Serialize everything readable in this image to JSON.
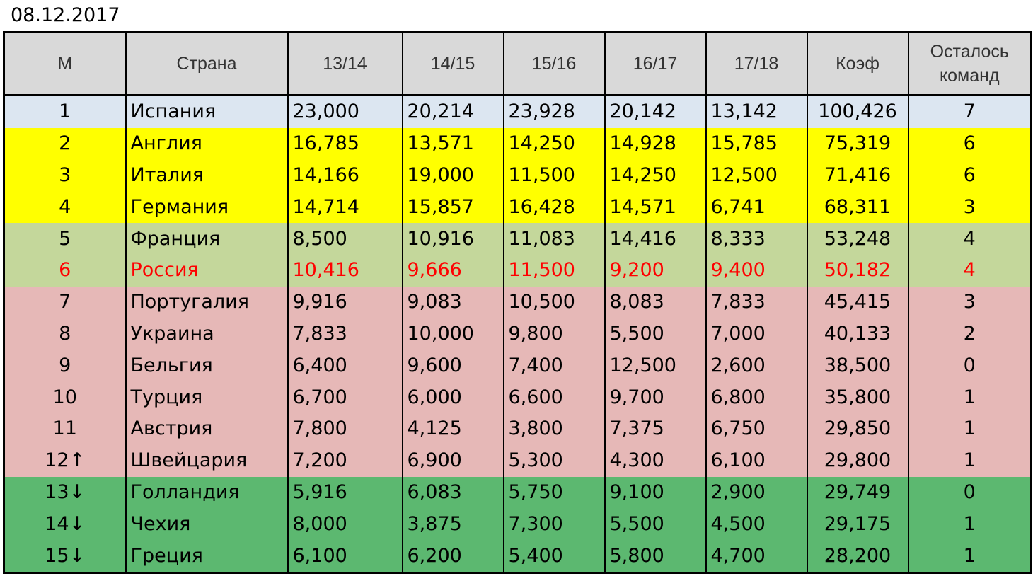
{
  "date": "08.12.2017",
  "columns": [
    "М",
    "Страна",
    "13/14",
    "14/15",
    "15/16",
    "16/17",
    "17/18",
    "Коэф",
    "Осталось команд"
  ],
  "rows": [
    {
      "rank": "1",
      "country": "Испания",
      "s1": "23,000",
      "s2": "20,214",
      "s3": "23,928",
      "s4": "20,142",
      "s5": "13,142",
      "coef": "100,426",
      "teams": "7",
      "group": "blue"
    },
    {
      "rank": "2",
      "country": "Англия",
      "s1": "16,785",
      "s2": "13,571",
      "s3": "14,250",
      "s4": "14,928",
      "s5": "15,785",
      "coef": "75,319",
      "teams": "6",
      "group": "yellow"
    },
    {
      "rank": "3",
      "country": "Италия",
      "s1": "14,166",
      "s2": "19,000",
      "s3": "11,500",
      "s4": "14,250",
      "s5": "12,500",
      "coef": "71,416",
      "teams": "6",
      "group": "yellow"
    },
    {
      "rank": "4",
      "country": "Германия",
      "s1": "14,714",
      "s2": "15,857",
      "s3": "16,428",
      "s4": "14,571",
      "s5": "6,741",
      "coef": "68,311",
      "teams": "3",
      "group": "yellow"
    },
    {
      "rank": "5",
      "country": "Франция",
      "s1": "8,500",
      "s2": "10,916",
      "s3": "11,083",
      "s4": "14,416",
      "s5": "8,333",
      "coef": "53,248",
      "teams": "4",
      "group": "olive"
    },
    {
      "rank": "6",
      "country": "Россия",
      "s1": "10,416",
      "s2": "9,666",
      "s3": "11,500",
      "s4": "9,200",
      "s5": "9,400",
      "coef": "50,182",
      "teams": "4",
      "group": "olive",
      "highlight": true
    },
    {
      "rank": "7",
      "country": "Португалия",
      "s1": "9,916",
      "s2": "9,083",
      "s3": "10,500",
      "s4": "8,083",
      "s5": "7,833",
      "coef": "45,415",
      "teams": "3",
      "group": "pink"
    },
    {
      "rank": "8",
      "country": "Украина",
      "s1": "7,833",
      "s2": "10,000",
      "s3": "9,800",
      "s4": "5,500",
      "s5": "7,000",
      "coef": "40,133",
      "teams": "2",
      "group": "pink"
    },
    {
      "rank": "9",
      "country": "Бельгия",
      "s1": "6,400",
      "s2": "9,600",
      "s3": "7,400",
      "s4": "12,500",
      "s5": "2,600",
      "coef": "38,500",
      "teams": "0",
      "group": "pink"
    },
    {
      "rank": "10",
      "country": "Турция",
      "s1": "6,700",
      "s2": "6,000",
      "s3": "6,600",
      "s4": "9,700",
      "s5": "6,800",
      "coef": "35,800",
      "teams": "1",
      "group": "pink"
    },
    {
      "rank": "11",
      "country": "Австрия",
      "s1": "7,800",
      "s2": "4,125",
      "s3": "3,800",
      "s4": "7,375",
      "s5": "6,750",
      "coef": "29,850",
      "teams": "1",
      "group": "pink"
    },
    {
      "rank": "12↑",
      "country": "Швейцария",
      "s1": "7,200",
      "s2": "6,900",
      "s3": "5,300",
      "s4": "4,300",
      "s5": "6,100",
      "coef": "29,800",
      "teams": "1",
      "group": "pink"
    },
    {
      "rank": "13↓",
      "country": "Голландия",
      "s1": "5,916",
      "s2": "6,083",
      "s3": "5,750",
      "s4": "9,100",
      "s5": "2,900",
      "coef": "29,749",
      "teams": "0",
      "group": "green"
    },
    {
      "rank": "14↓",
      "country": "Чехия",
      "s1": "8,000",
      "s2": "3,875",
      "s3": "7,300",
      "s4": "5,500",
      "s5": "4,500",
      "coef": "29,175",
      "teams": "1",
      "group": "green"
    },
    {
      "rank": "15↓",
      "country": "Греция",
      "s1": "6,100",
      "s2": "6,200",
      "s3": "5,400",
      "s4": "5,800",
      "s5": "4,700",
      "coef": "28,200",
      "teams": "1",
      "group": "green"
    }
  ],
  "colors": {
    "header": "#d9d9d9",
    "blue": "#dce6f1",
    "yellow": "#ffff00",
    "olive": "#c4d79b",
    "pink": "#e6b8b7",
    "green": "#5cb870",
    "highlight_text": "#ff0000"
  }
}
